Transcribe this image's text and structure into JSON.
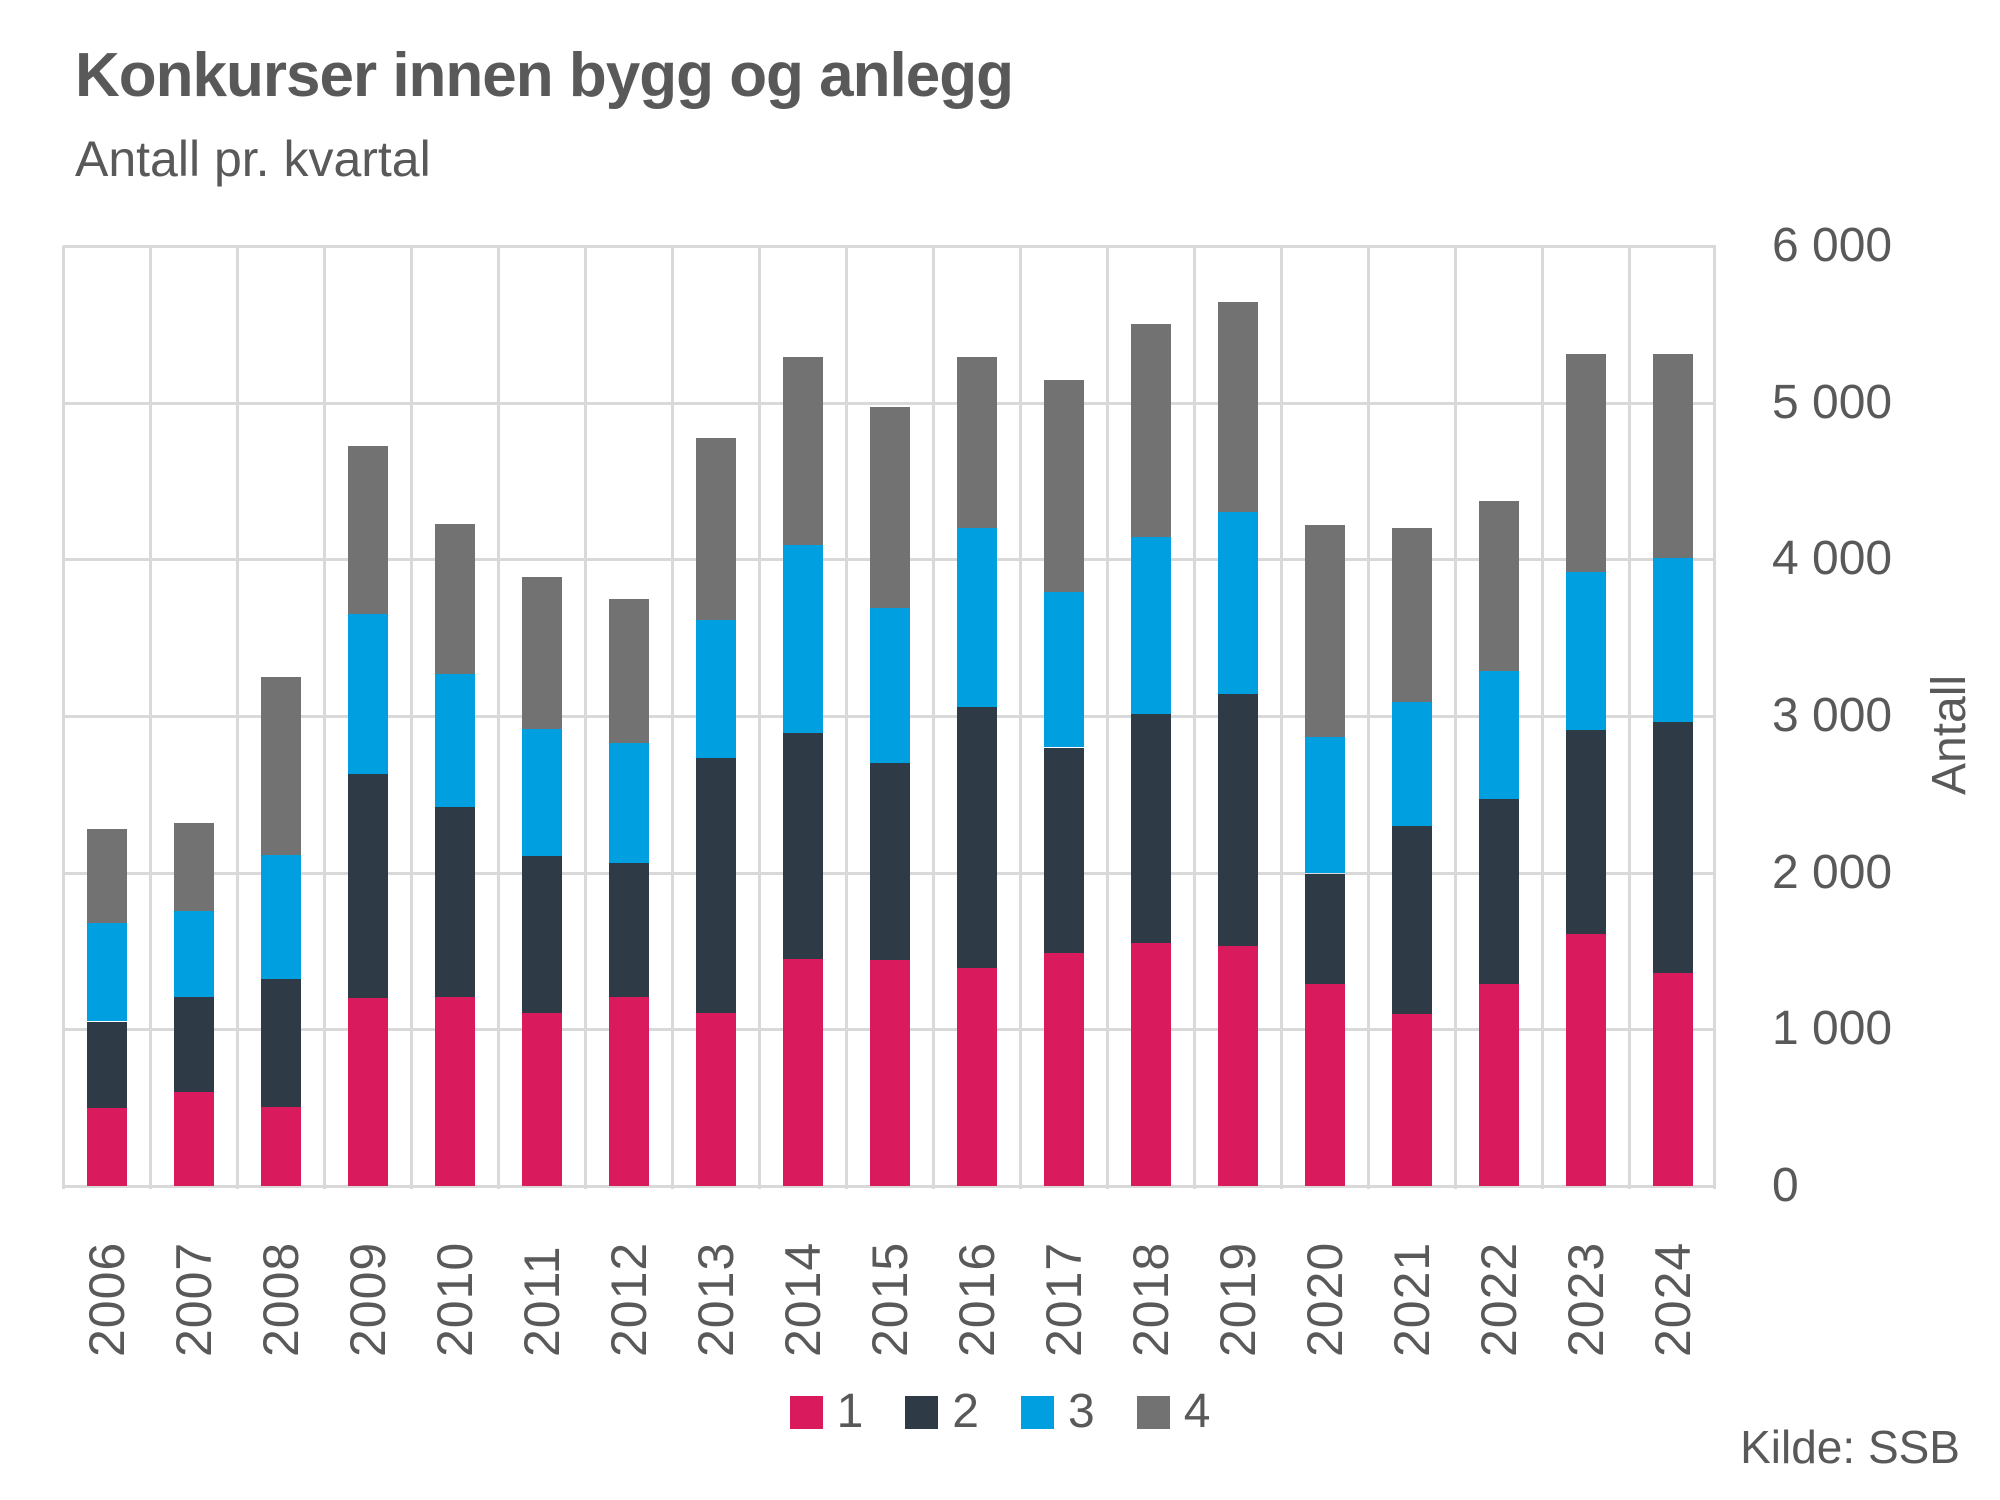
{
  "header": {
    "title": "Konkurser innen bygg og anlegg",
    "subtitle": "Antall pr. kvartal"
  },
  "source": "Kilde: SSB",
  "colors": {
    "q1": "#D91A5C",
    "q2": "#2E3A46",
    "q3": "#009FE0",
    "q4": "#727272",
    "gridline": "#D9D9D9",
    "text": "#595959"
  },
  "chart_data": {
    "type": "bar",
    "stacked": true,
    "title": "Konkurser innen bygg og anlegg",
    "subtitle": "Antall pr. kvartal",
    "ylabel": "Antall",
    "xlabel": "",
    "ylim": [
      0,
      6000
    ],
    "ytick_interval": 1000,
    "ytick_labels": [
      "6 000",
      "5 000",
      "4 000",
      "3 000",
      "2 000",
      "1 000",
      "0"
    ],
    "grid": true,
    "legend_position": "bottom",
    "categories": [
      2006,
      2007,
      2008,
      2009,
      2010,
      2011,
      2012,
      2013,
      2014,
      2015,
      2016,
      2017,
      2018,
      2019,
      2020,
      2021,
      2022,
      2023,
      2024
    ],
    "series": [
      {
        "name": "1",
        "color": "#D91A5C",
        "values": [
          500,
          600,
          505,
          1200,
          1205,
          1105,
          1205,
          1105,
          1450,
          1440,
          1390,
          1490,
          1550,
          1530,
          1290,
          1100,
          1290,
          1610,
          1360
        ]
      },
      {
        "name": "2",
        "color": "#2E3A46",
        "values": [
          550,
          605,
          815,
          1430,
          1215,
          1000,
          855,
          1625,
          1440,
          1260,
          1670,
          1310,
          1460,
          1610,
          705,
          1200,
          1180,
          1300,
          1600
        ]
      },
      {
        "name": "3",
        "color": "#009FE0",
        "values": [
          630,
          550,
          790,
          1020,
          850,
          815,
          770,
          880,
          1200,
          990,
          1140,
          990,
          1130,
          1160,
          870,
          790,
          820,
          1010,
          1050
        ]
      },
      {
        "name": "4",
        "color": "#727272",
        "values": [
          600,
          560,
          1135,
          1075,
          960,
          970,
          920,
          1160,
          1200,
          1280,
          1090,
          1350,
          1360,
          1340,
          1355,
          1110,
          1085,
          1390,
          1300
        ]
      }
    ]
  }
}
